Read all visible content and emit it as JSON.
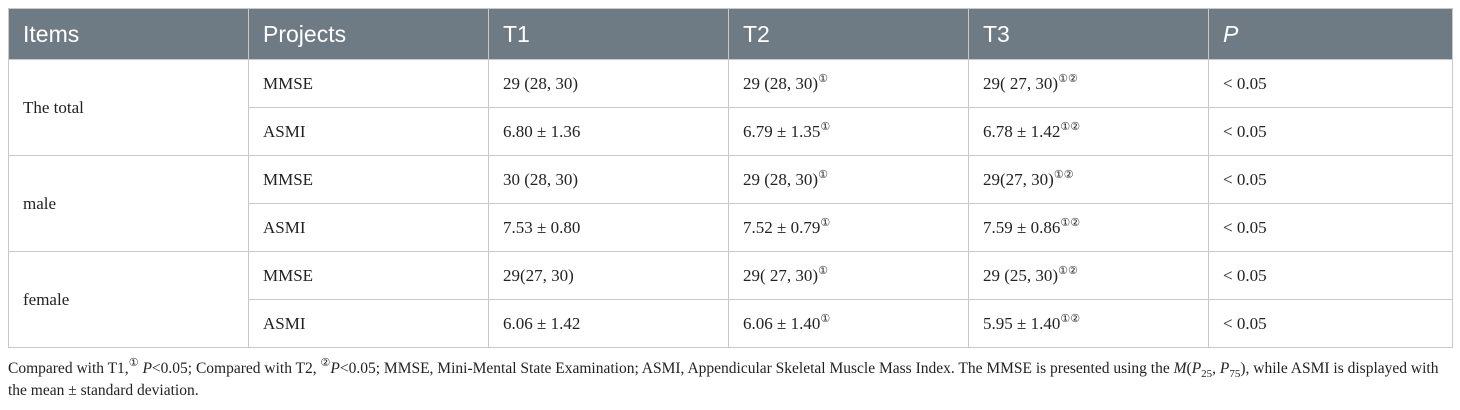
{
  "table": {
    "header": [
      "Items",
      "Projects",
      "T1",
      "T2",
      "T3",
      "P"
    ],
    "groups": [
      {
        "label": "The total",
        "rows": [
          [
            {
              "text": "MMSE"
            },
            {
              "text": "29 (28, 30)"
            },
            {
              "text": "29 (28, 30)",
              "sup": "①"
            },
            {
              "text": "29( 27, 30)",
              "sup": "①②"
            },
            {
              "text": "< 0.05"
            }
          ],
          [
            {
              "text": "ASMI"
            },
            {
              "text": "6.80 ± 1.36"
            },
            {
              "text": "6.79 ± 1.35",
              "sup": "①"
            },
            {
              "text": "6.78 ± 1.42",
              "sup": "①②"
            },
            {
              "text": "< 0.05"
            }
          ]
        ]
      },
      {
        "label": "male",
        "rows": [
          [
            {
              "text": "MMSE"
            },
            {
              "text": "30 (28, 30)"
            },
            {
              "text": "29 (28, 30)",
              "sup": "①"
            },
            {
              "text": "29(27, 30)",
              "sup": "①②"
            },
            {
              "text": "< 0.05"
            }
          ],
          [
            {
              "text": "ASMI"
            },
            {
              "text": "7.53 ± 0.80"
            },
            {
              "text": "7.52 ± 0.79",
              "sup": "①"
            },
            {
              "text": "7.59 ± 0.86",
              "sup": "①②"
            },
            {
              "text": "< 0.05"
            }
          ]
        ]
      },
      {
        "label": "female",
        "rows": [
          [
            {
              "text": "MMSE"
            },
            {
              "text": "29(27, 30)"
            },
            {
              "text": "29( 27, 30)",
              "sup": "①"
            },
            {
              "text": "29 (25, 30)",
              "sup": "①②"
            },
            {
              "text": "< 0.05"
            }
          ],
          [
            {
              "text": "ASMI"
            },
            {
              "text": "6.06 ± 1.42"
            },
            {
              "text": "6.06 ± 1.40",
              "sup": "①"
            },
            {
              "text": "5.95 ± 1.40",
              "sup": "①②"
            },
            {
              "text": "< 0.05"
            }
          ]
        ]
      }
    ]
  },
  "footnote": [
    {
      "text": "Compared with T1,"
    },
    {
      "text": "①",
      "style": "sup"
    },
    {
      "text": " "
    },
    {
      "text": "P",
      "style": "i"
    },
    {
      "text": "<0.05; Compared with T2, "
    },
    {
      "text": "②",
      "style": "sup"
    },
    {
      "text": "P",
      "style": "i"
    },
    {
      "text": "<0.05; MMSE, Mini-Mental State Examination; ASMI, Appendicular Skeletal Muscle Mass Index. The MMSE is presented using the "
    },
    {
      "text": "M",
      "style": "i"
    },
    {
      "text": "("
    },
    {
      "text": "P",
      "style": "i"
    },
    {
      "text": "25",
      "style": "sub"
    },
    {
      "text": ", "
    },
    {
      "text": "P",
      "style": "i"
    },
    {
      "text": "75",
      "style": "sub"
    },
    {
      "text": "), while ASMI is displayed with the mean ± standard deviation."
    }
  ]
}
